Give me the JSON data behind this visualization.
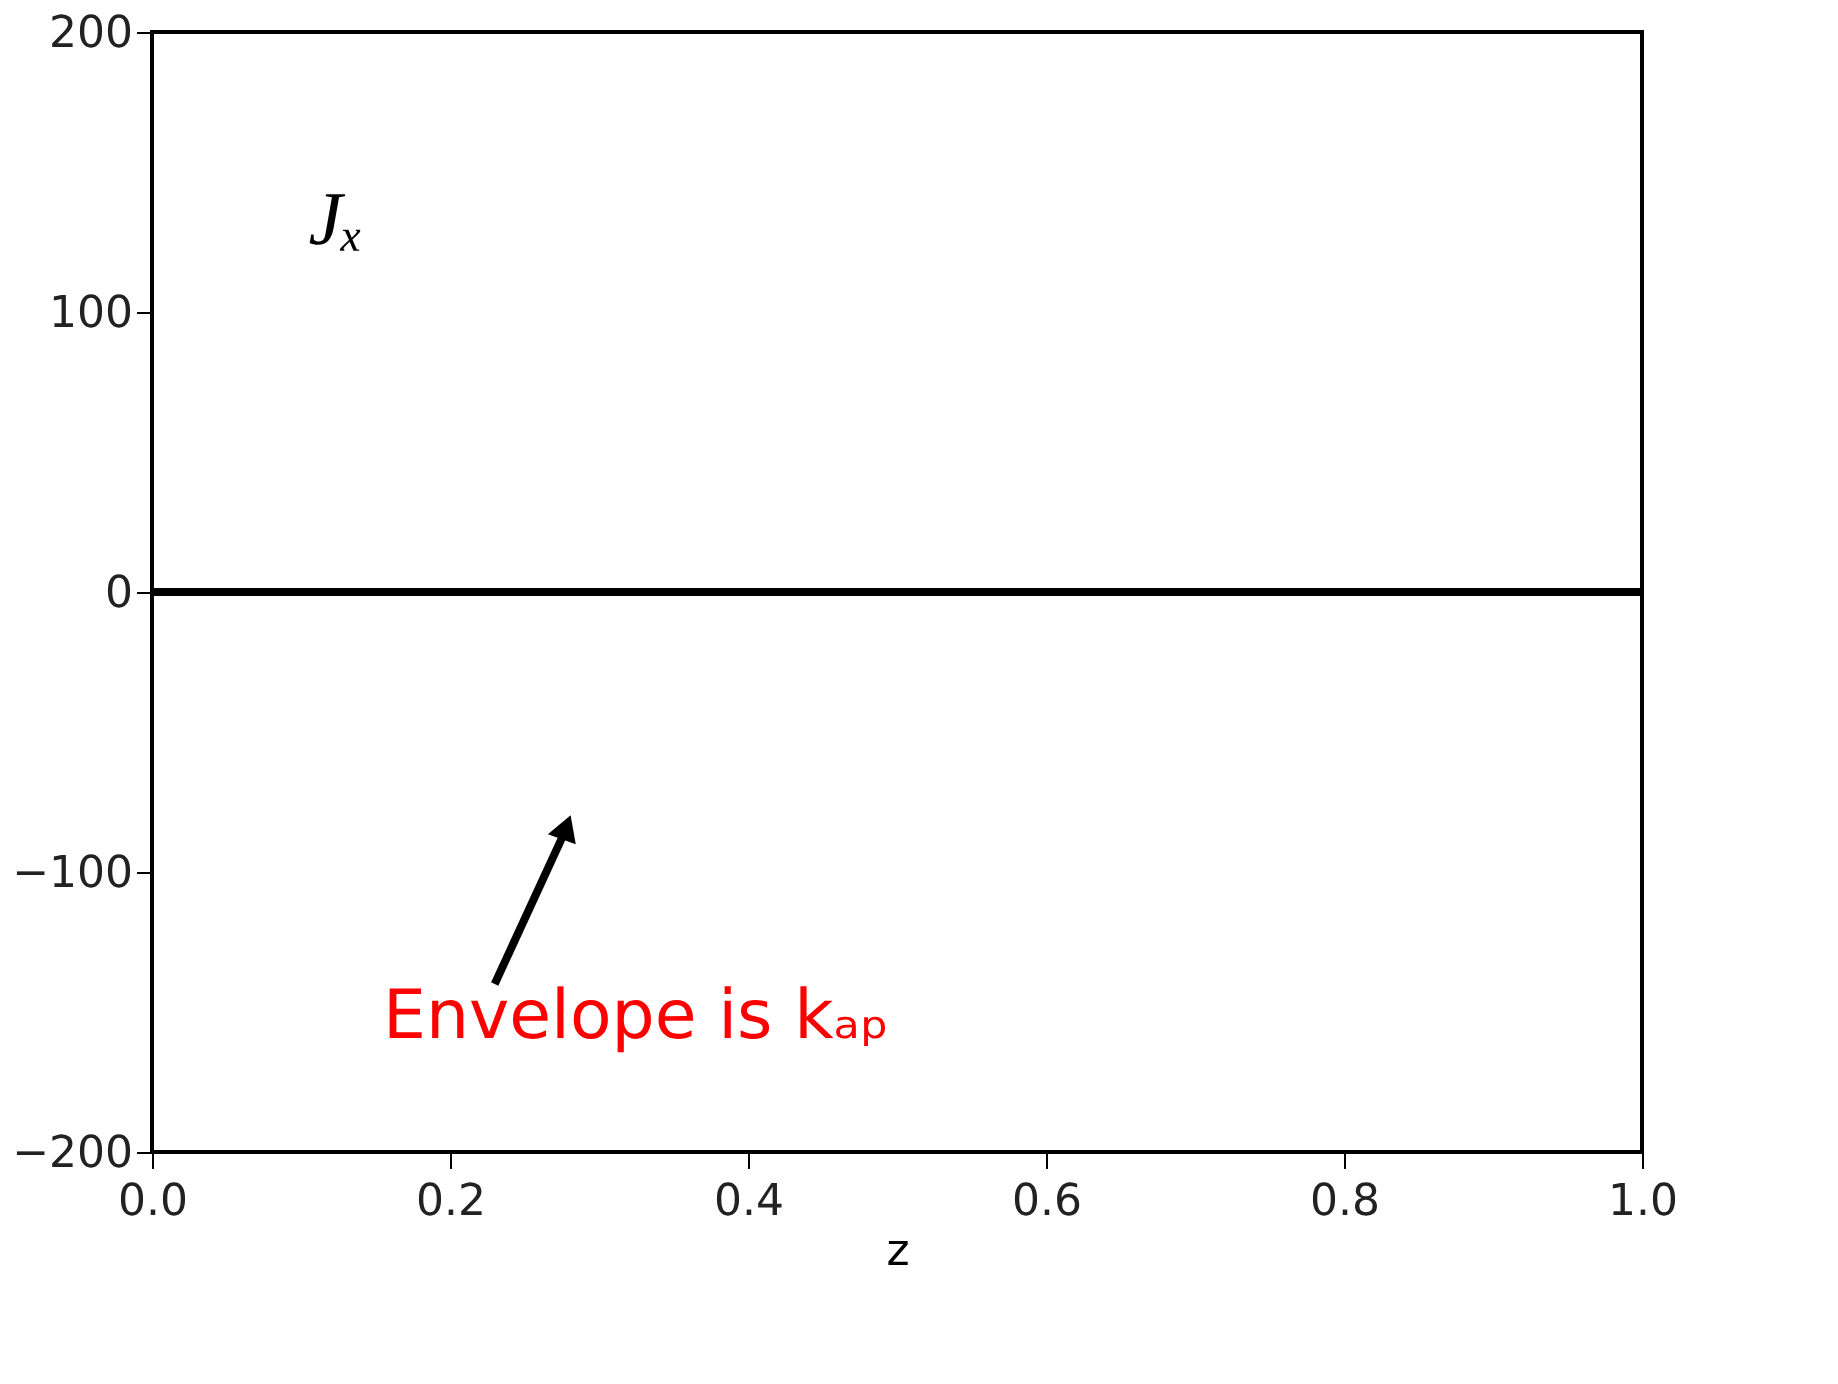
{
  "chart_data": {
    "type": "line",
    "xlabel": "z",
    "x": [
      0,
      1
    ],
    "series": [
      {
        "color": "#000000",
        "values": [
          0,
          0
        ]
      }
    ],
    "xlim": [
      0,
      1
    ],
    "ylim": [
      -200,
      200
    ],
    "xticks": [
      {
        "value": 0,
        "label": "0.0"
      },
      {
        "value": 0.2,
        "label": "0.2"
      },
      {
        "value": 0.4,
        "label": "0.4"
      },
      {
        "value": 0.6,
        "label": "0.6"
      },
      {
        "value": 0.8,
        "label": "0.8"
      },
      {
        "value": 1,
        "label": "1.0"
      }
    ],
    "yticks": [
      -200,
      -100,
      0,
      100,
      200
    ],
    "annotations": [
      "Jₓ",
      "Envelope is kₐₚ"
    ],
    "grid": false,
    "marker": "none",
    "line_style": "solid"
  }
}
